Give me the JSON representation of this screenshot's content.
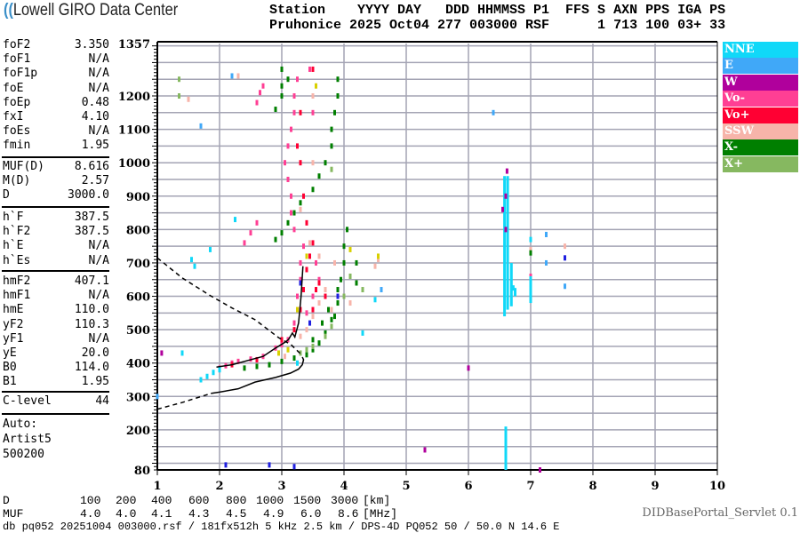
{
  "header": {
    "logo_text": "Lowell GIRO Data Center",
    "line1": "Station    YYYY DAY   DDD HHMMSS P1  FFS S AXN PPS IGA PS",
    "line2": "Pruhonice 2025 Oct04 277 003000 RSF      1 713 100 03+ 33"
  },
  "params": {
    "group1": [
      {
        "label": "foF2",
        "value": "3.350"
      },
      {
        "label": "foF1",
        "value": "N/A"
      },
      {
        "label": "foF1p",
        "value": "N/A"
      },
      {
        "label": "foE",
        "value": "N/A"
      },
      {
        "label": "foEp",
        "value": "0.48"
      },
      {
        "label": "fxI",
        "value": "4.10"
      },
      {
        "label": "foEs",
        "value": "N/A"
      },
      {
        "label": "fmin",
        "value": "1.95"
      }
    ],
    "group2": [
      {
        "label": "MUF(D)",
        "value": "8.616"
      },
      {
        "label": "M(D)",
        "value": "2.57"
      },
      {
        "label": "D",
        "value": "3000.0"
      }
    ],
    "group3": [
      {
        "label": "h`F",
        "value": "387.5"
      },
      {
        "label": "h`F2",
        "value": "387.5"
      },
      {
        "label": "h`E",
        "value": "N/A"
      },
      {
        "label": "h`Es",
        "value": "N/A"
      }
    ],
    "group4": [
      {
        "label": "hmF2",
        "value": "407.1"
      },
      {
        "label": "hmF1",
        "value": "N/A"
      },
      {
        "label": "hmE",
        "value": "110.0"
      },
      {
        "label": "yF2",
        "value": "110.3"
      },
      {
        "label": "yF1",
        "value": "N/A"
      },
      {
        "label": "yE",
        "value": "20.0"
      },
      {
        "label": "B0",
        "value": "114.0"
      },
      {
        "label": "B1",
        "value": "1.95"
      }
    ],
    "group5": [
      {
        "label": "C-level",
        "value": "44"
      }
    ],
    "autoscale": [
      "Auto:",
      "Artist5",
      "500200"
    ]
  },
  "legend": [
    {
      "label": "NNE",
      "color": "#10d8f8"
    },
    {
      "label": "E",
      "color": "#40a8f8"
    },
    {
      "label": "W",
      "color": "#b0009c"
    },
    {
      "label": "Vo-",
      "color": "#ff3f94"
    },
    {
      "label": "Vo+",
      "color": "#ff0033"
    },
    {
      "label": "SSW",
      "color": "#f7b4aa"
    },
    {
      "label": "X-",
      "color": "#007f00"
    },
    {
      "label": "X+",
      "color": "#86b860"
    }
  ],
  "muf_table": {
    "d_label": "D",
    "d_values": [
      "100",
      "200",
      "400",
      "600",
      "800",
      "1000",
      "1500",
      "3000"
    ],
    "d_unit": "[km]",
    "muf_label": "MUF",
    "muf_values": [
      "4.0",
      "4.0",
      "4.1",
      "4.3",
      "4.5",
      "4.9",
      "6.0",
      "8.6"
    ],
    "muf_unit": "[MHz]"
  },
  "footer": {
    "servlet": "DIDBasePortal_Servlet 0.1",
    "file_info": "db pq052 20251004 003000.rsf / 181fx512h 5 kHz 2.5 km / DPS-4D PQ052 50 / 50.0 N 14.6 E"
  },
  "chart_data": {
    "type": "scatter",
    "xlabel": "",
    "ylabel": "",
    "xlim": [
      1,
      10
    ],
    "ylim": [
      80,
      1357
    ],
    "x_ticks": [
      "1",
      "2",
      "3",
      "4",
      "5",
      "6",
      "7",
      "8",
      "9",
      "10"
    ],
    "y_ticks": [
      "1357",
      "1200",
      "1100",
      "1000",
      "900",
      "800",
      "700",
      "600",
      "500",
      "400",
      "300",
      "200",
      "80"
    ],
    "grid": true,
    "legend_placement": "right",
    "series": [
      {
        "name": "Vo-",
        "color": "#ff3f94",
        "points": [
          [
            2.0,
            385
          ],
          [
            2.1,
            392
          ],
          [
            2.2,
            400
          ],
          [
            2.3,
            405
          ],
          [
            2.5,
            412
          ],
          [
            2.7,
            420
          ],
          [
            2.9,
            445
          ],
          [
            3.0,
            455
          ],
          [
            3.1,
            470
          ],
          [
            3.2,
            520
          ],
          [
            3.25,
            600
          ],
          [
            3.3,
            650
          ],
          [
            3.3,
            700
          ],
          [
            3.35,
            750
          ],
          [
            3.2,
            800
          ],
          [
            3.15,
            850
          ],
          [
            3.15,
            900
          ],
          [
            3.1,
            950
          ],
          [
            3.05,
            1000
          ],
          [
            3.1,
            1050
          ],
          [
            3.15,
            1100
          ],
          [
            3.2,
            1150
          ],
          [
            3.2,
            1200
          ],
          [
            3.25,
            1250
          ],
          [
            2.6,
            1180
          ],
          [
            2.65,
            1210
          ],
          [
            2.7,
            1230
          ],
          [
            2.4,
            760
          ],
          [
            2.5,
            790
          ],
          [
            2.6,
            820
          ],
          [
            3.5,
            600
          ],
          [
            3.6,
            650
          ],
          [
            3.4,
            550
          ],
          [
            3.55,
            700
          ],
          [
            3.45,
            1280
          ],
          [
            3.5,
            1150
          ],
          [
            7.0,
            660
          ],
          [
            7.0,
            600
          ]
        ]
      },
      {
        "name": "Vo+",
        "color": "#ff0033",
        "points": [
          [
            2.2,
            395
          ],
          [
            2.6,
            410
          ],
          [
            3.0,
            470
          ],
          [
            3.2,
            500
          ],
          [
            3.3,
            560
          ],
          [
            3.35,
            620
          ],
          [
            3.4,
            680
          ],
          [
            3.45,
            720
          ],
          [
            3.5,
            760
          ],
          [
            3.3,
            1000
          ],
          [
            3.35,
            900
          ],
          [
            3.3,
            1150
          ],
          [
            3.5,
            1280
          ],
          [
            3.6,
            640
          ],
          [
            3.7,
            600
          ],
          [
            3.4,
            820
          ],
          [
            3.25,
            1050
          ],
          [
            3.5,
            560
          ],
          [
            3.55,
            620
          ]
        ]
      },
      {
        "name": "SSW",
        "color": "#f7b4aa",
        "points": [
          [
            3.3,
            480
          ],
          [
            3.4,
            500
          ],
          [
            3.5,
            540
          ],
          [
            3.6,
            580
          ],
          [
            3.7,
            620
          ],
          [
            3.85,
            700
          ],
          [
            3.5,
            1000
          ],
          [
            3.5,
            1200
          ],
          [
            3.3,
            860
          ],
          [
            3.6,
            720
          ],
          [
            3.8,
            560
          ],
          [
            4.1,
            580
          ],
          [
            7.0,
            740
          ],
          [
            7.55,
            750
          ],
          [
            2.3,
            1260
          ],
          [
            1.5,
            1190
          ],
          [
            3.05,
            420
          ],
          [
            4.55,
            710
          ],
          [
            4.5,
            690
          ],
          [
            3.45,
            760
          ]
        ]
      },
      {
        "name": "X-",
        "color": "#007f00",
        "points": [
          [
            2.4,
            385
          ],
          [
            2.6,
            390
          ],
          [
            2.8,
            395
          ],
          [
            3.0,
            405
          ],
          [
            3.2,
            415
          ],
          [
            3.4,
            425
          ],
          [
            3.5,
            440
          ],
          [
            3.6,
            460
          ],
          [
            3.7,
            490
          ],
          [
            3.8,
            530
          ],
          [
            3.9,
            580
          ],
          [
            3.95,
            650
          ],
          [
            4.0,
            700
          ],
          [
            4.0,
            750
          ],
          [
            4.05,
            800
          ],
          [
            3.9,
            620
          ],
          [
            3.85,
            540
          ],
          [
            2.9,
            770
          ],
          [
            3.0,
            790
          ],
          [
            3.1,
            820
          ],
          [
            3.2,
            850
          ],
          [
            3.3,
            880
          ],
          [
            3.5,
            920
          ],
          [
            3.6,
            960
          ],
          [
            3.7,
            1000
          ],
          [
            3.8,
            1050
          ],
          [
            3.8,
            1100
          ],
          [
            3.85,
            1150
          ],
          [
            3.9,
            1200
          ],
          [
            3.9,
            1250
          ],
          [
            3.0,
            1230
          ],
          [
            3.0,
            1200
          ],
          [
            3.1,
            1250
          ],
          [
            3.0,
            1280
          ],
          [
            2.9,
            1160
          ],
          [
            3.5,
            470
          ],
          [
            4.2,
            700
          ],
          [
            4.2,
            640
          ],
          [
            7.0,
            730
          ],
          [
            3.65,
            520
          ],
          [
            3.75,
            560
          ]
        ]
      },
      {
        "name": "X+",
        "color": "#86b860",
        "points": [
          [
            3.3,
            430
          ],
          [
            3.5,
            450
          ],
          [
            3.7,
            480
          ],
          [
            3.8,
            510
          ],
          [
            4.0,
            600
          ],
          [
            4.3,
            620
          ],
          [
            3.8,
            980
          ],
          [
            1.35,
            1200
          ],
          [
            1.35,
            1250
          ],
          [
            4.1,
            660
          ],
          [
            3.4,
            440
          ]
        ]
      },
      {
        "name": "NNE",
        "color": "#10d8f8",
        "points": [
          [
            1.7,
            350
          ],
          [
            1.8,
            360
          ],
          [
            1.9,
            372
          ],
          [
            2.0,
            380
          ],
          [
            1.4,
            430
          ],
          [
            1.6,
            690
          ],
          [
            1.55,
            710
          ],
          [
            1.85,
            740
          ],
          [
            7.0,
            770
          ],
          [
            3.25,
            400
          ],
          [
            4.5,
            590
          ],
          [
            4.3,
            490
          ],
          [
            6.72,
            625
          ],
          [
            2.25,
            830
          ]
        ],
        "segments": [
          [
            6.58,
            540,
            960
          ],
          [
            6.63,
            560,
            960
          ],
          [
            6.69,
            570,
            700
          ],
          [
            6.75,
            600,
            625
          ],
          [
            6.6,
            80,
            210
          ],
          [
            7.0,
            580,
            660
          ]
        ]
      },
      {
        "name": "E",
        "color": "#40a8f8",
        "points": [
          [
            7.25,
            785
          ],
          [
            7.55,
            630
          ],
          [
            4.6,
            620
          ],
          [
            1.7,
            1110
          ],
          [
            2.2,
            1260
          ],
          [
            1.0,
            300
          ],
          [
            6.4,
            1150
          ],
          [
            7.25,
            700
          ]
        ]
      },
      {
        "name": "W",
        "color": "#b0009c",
        "points": [
          [
            6.62,
            975
          ],
          [
            6.55,
            860
          ],
          [
            6.6,
            900
          ],
          [
            6.6,
            800
          ],
          [
            1.07,
            430
          ],
          [
            6.0,
            385
          ],
          [
            5.3,
            140
          ],
          [
            7.15,
            80
          ]
        ]
      },
      {
        "color": "#d8d000",
        "points": [
          [
            3.1,
            440
          ],
          [
            3.25,
            560
          ],
          [
            3.4,
            720
          ],
          [
            4.1,
            740
          ],
          [
            4.55,
            720
          ],
          [
            3.55,
            1230
          ],
          [
            2.95,
            430
          ]
        ]
      },
      {
        "color": "#2020e0",
        "points": [
          [
            3.3,
            640
          ],
          [
            3.45,
            520
          ],
          [
            3.9,
            600
          ],
          [
            7.55,
            715
          ],
          [
            2.1,
            95
          ],
          [
            2.8,
            95
          ],
          [
            3.2,
            90
          ]
        ]
      }
    ],
    "lines": [
      {
        "style": "solid",
        "points": [
          [
            1.95,
            388
          ],
          [
            2.2,
            395
          ],
          [
            2.5,
            410
          ],
          [
            2.7,
            420
          ],
          [
            2.9,
            445
          ],
          [
            3.05,
            462
          ],
          [
            3.11,
            471
          ],
          [
            3.17,
            490
          ],
          [
            3.21,
            478
          ],
          [
            3.27,
            520
          ],
          [
            3.31,
            600
          ],
          [
            3.34,
            690
          ]
        ]
      },
      {
        "style": "solid",
        "points": [
          [
            1.86,
            309
          ],
          [
            2.0,
            313
          ],
          [
            2.3,
            323
          ],
          [
            2.57,
            343
          ],
          [
            2.9,
            357
          ],
          [
            3.14,
            370
          ],
          [
            3.27,
            382
          ],
          [
            3.33,
            395
          ],
          [
            3.35,
            410
          ],
          [
            3.33,
            418
          ]
        ]
      },
      {
        "style": "dashed",
        "points": [
          [
            1.0,
            262
          ],
          [
            1.4,
            282
          ],
          [
            1.86,
            309
          ]
        ]
      },
      {
        "style": "dashed",
        "points": [
          [
            1.0,
            715
          ],
          [
            1.4,
            655
          ],
          [
            1.86,
            601
          ],
          [
            2.2,
            565
          ],
          [
            2.57,
            530
          ],
          [
            2.95,
            476
          ],
          [
            3.15,
            455
          ],
          [
            3.3,
            428
          ]
        ]
      }
    ]
  }
}
